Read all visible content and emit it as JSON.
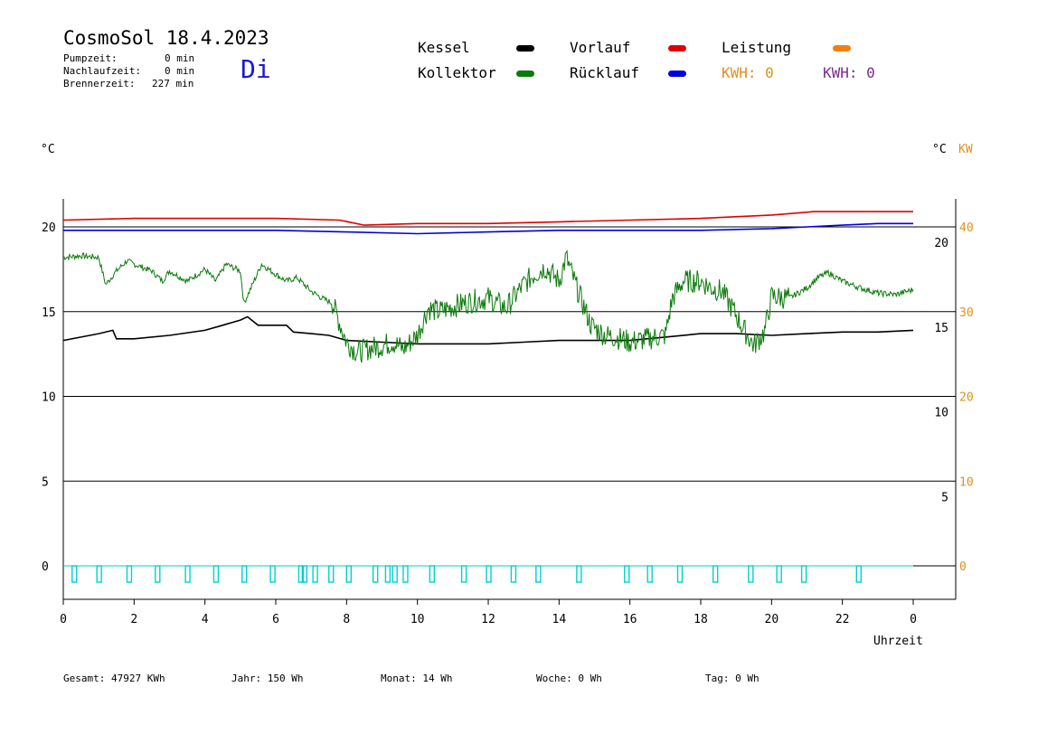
{
  "header": {
    "title": "CosmoSol 18.4.2023",
    "weekday": "Di",
    "stats": [
      {
        "label": "Pumpzeit:",
        "value": "0 min"
      },
      {
        "label": "Nachlaufzeit:",
        "value": "0 min"
      },
      {
        "label": "Brennerzeit:",
        "value": "227 min"
      }
    ]
  },
  "legend": {
    "kessel": "Kessel",
    "kollektor": "Kollektor",
    "vorlauf": "Vorlauf",
    "ruecklauf": "Rücklauf",
    "leistung": "Leistung",
    "kwh_orange": "KWH: 0",
    "kwh_purple": "KWH: 0"
  },
  "units": {
    "left": "°C",
    "right_c": "°C",
    "right_kw": "KW"
  },
  "colors": {
    "kessel": "#000000",
    "kollektor": "#0a7a0a",
    "vorlauf": "#e00000",
    "ruecklauf": "#0000e0",
    "leistung": "#f08010",
    "kwh_purple": "#7a2a8a",
    "pump": "#00d0d0",
    "kw_axis": "#e09020"
  },
  "footer": {
    "gesamt": "Gesamt:  47927 KWh",
    "jahr": "Jahr:   150 Wh",
    "monat": "Monat:    14 Wh",
    "woche": "Woche:    0 Wh",
    "tag": "Tag:    0 Wh"
  },
  "chart_data": {
    "type": "line",
    "xlabel": "Uhrzeit",
    "x_ticks": [
      "0",
      "2",
      "4",
      "6",
      "8",
      "10",
      "12",
      "14",
      "16",
      "18",
      "20",
      "22",
      "0"
    ],
    "xlim": [
      0,
      24
    ],
    "ylim": [
      -1.5,
      22
    ],
    "y_ticks_left": [
      "20",
      "15",
      "10",
      "5",
      "0"
    ],
    "y_ticks_right_c": [
      "20",
      "15",
      "10",
      "5"
    ],
    "y_ticks_right_kw": [
      "40",
      "30",
      "20",
      "10",
      "0"
    ],
    "grid_y": [
      0,
      5,
      10,
      15,
      20
    ],
    "series": [
      {
        "key": "vorlauf",
        "x": [
          0,
          2,
          4,
          6,
          7.8,
          8.5,
          10,
          12,
          14,
          16,
          18,
          20,
          21.2,
          22,
          24
        ],
        "y": [
          20.4,
          20.5,
          20.5,
          20.5,
          20.4,
          20.1,
          20.2,
          20.2,
          20.3,
          20.4,
          20.5,
          20.7,
          20.9,
          20.9,
          20.9
        ]
      },
      {
        "key": "ruecklauf",
        "x": [
          0,
          2,
          4,
          6,
          8,
          10,
          12,
          14,
          16,
          18,
          20,
          21,
          22,
          23,
          24
        ],
        "y": [
          19.8,
          19.8,
          19.8,
          19.8,
          19.7,
          19.6,
          19.7,
          19.8,
          19.8,
          19.8,
          19.9,
          20.0,
          20.1,
          20.2,
          20.2
        ]
      },
      {
        "key": "kessel",
        "x": [
          0,
          0.5,
          1,
          1.4,
          1.5,
          2,
          3,
          4,
          4.5,
          5,
          5.2,
          5.5,
          6,
          6.3,
          6.5,
          7,
          7.5,
          8,
          9,
          10,
          11,
          12,
          13,
          14,
          15,
          16,
          17,
          18,
          19,
          20,
          21,
          22,
          23,
          24
        ],
        "y": [
          13.3,
          13.5,
          13.7,
          13.9,
          13.4,
          13.4,
          13.6,
          13.9,
          14.2,
          14.5,
          14.7,
          14.2,
          14.2,
          14.2,
          13.8,
          13.7,
          13.6,
          13.3,
          13.2,
          13.1,
          13.1,
          13.1,
          13.2,
          13.3,
          13.3,
          13.3,
          13.5,
          13.7,
          13.7,
          13.6,
          13.7,
          13.8,
          13.8,
          13.9
        ]
      },
      {
        "key": "kollektor",
        "x": [
          0,
          0.5,
          1,
          1.2,
          1.5,
          1.8,
          2,
          2.5,
          2.8,
          3,
          3.5,
          4,
          4.3,
          4.6,
          5,
          5.1,
          5.3,
          5.6,
          6,
          6.3,
          6.6,
          7,
          7.3,
          7.6,
          8,
          8.3,
          8.6,
          9,
          9.3,
          9.6,
          10,
          10.3,
          10.6,
          11,
          11.5,
          12,
          12.5,
          13,
          13.3,
          13.6,
          14,
          14.2,
          14.5,
          14.9,
          15.3,
          15.6,
          16,
          16.5,
          17,
          17.2,
          17.5,
          18,
          18.3,
          18.6,
          19,
          19.2,
          19.5,
          19.8,
          20,
          20.5,
          21,
          21.3,
          21.6,
          22,
          22.5,
          23,
          23.5,
          24
        ],
        "y": [
          18.2,
          18.3,
          18.2,
          16.6,
          17.4,
          18.0,
          17.8,
          17.4,
          16.8,
          17.4,
          16.8,
          17.5,
          16.8,
          17.8,
          17.4,
          15.5,
          16.4,
          17.8,
          17.2,
          16.8,
          17.0,
          16.2,
          15.8,
          15.5,
          13.2,
          12.6,
          12.8,
          13.0,
          13.2,
          12.8,
          13.6,
          15.2,
          15.0,
          15.3,
          15.6,
          15.8,
          15.2,
          16.6,
          17.2,
          17.6,
          16.8,
          18.2,
          16.4,
          14.2,
          13.6,
          13.5,
          13.2,
          13.4,
          13.6,
          15.8,
          16.8,
          16.8,
          16.4,
          16.2,
          14.8,
          14.0,
          13.0,
          13.8,
          15.9,
          15.8,
          16.4,
          17.0,
          17.3,
          16.8,
          16.4,
          16.1,
          16.0,
          16.3
        ]
      },
      {
        "key": "pump",
        "pulses": [
          0.3,
          1.0,
          1.85,
          2.65,
          3.5,
          4.3,
          5.1,
          5.9,
          6.7,
          6.8,
          7.1,
          7.55,
          8.05,
          8.8,
          9.15,
          9.35,
          9.65,
          10.4,
          11.3,
          12.0,
          12.7,
          13.4,
          14.55,
          15.9,
          16.55,
          17.4,
          18.4,
          19.4,
          20.2,
          20.9,
          22.45
        ]
      }
    ]
  }
}
